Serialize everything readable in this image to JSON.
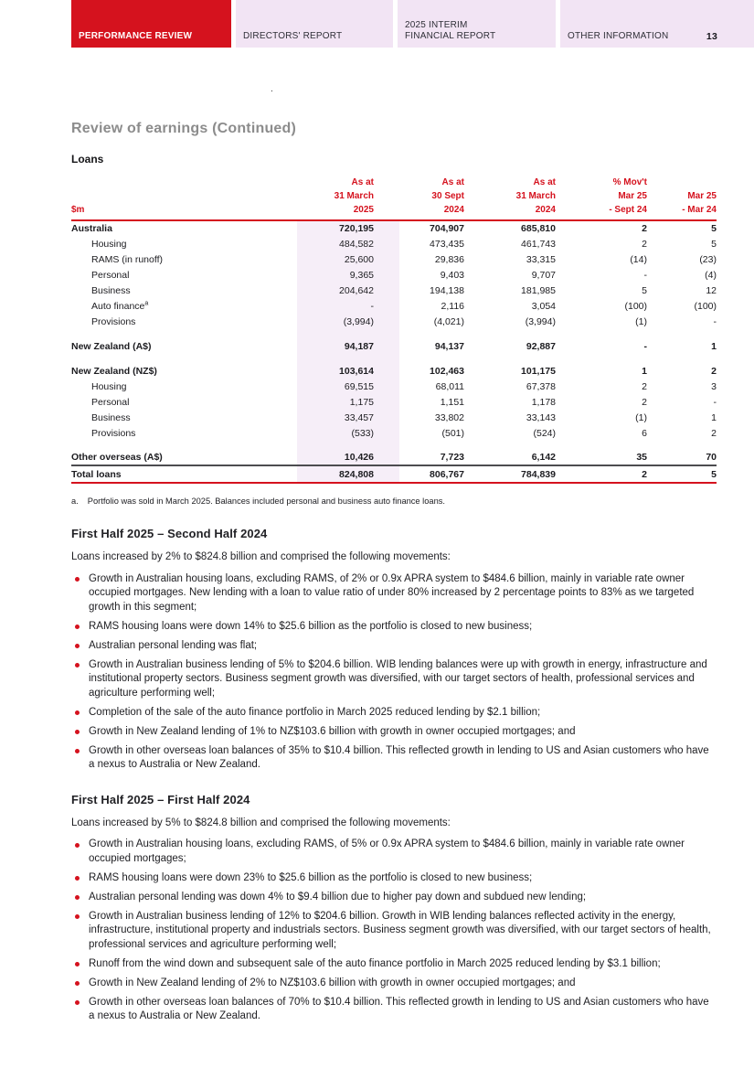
{
  "colors": {
    "accent_red": "#D5121E",
    "tab_pink": "#F2E4F4",
    "column_highlight": "#F6EEF8",
    "title_gray": "#8C8C8C"
  },
  "header": {
    "tabs": [
      {
        "lines": [
          "PERFORMANCE REVIEW"
        ],
        "active": true
      },
      {
        "lines": [
          "DIRECTORS' REPORT"
        ],
        "active": false
      },
      {
        "lines": [
          "2025 INTERIM",
          "FINANCIAL REPORT"
        ],
        "active": false
      },
      {
        "lines": [
          "OTHER INFORMATION"
        ],
        "active": false
      }
    ],
    "page_number": "13"
  },
  "stray_mark": ".",
  "page_title": "Review of earnings (Continued)",
  "loans_label": "Loans",
  "table": {
    "unit": "$m",
    "col_headers": [
      {
        "l1": "As at",
        "l2": "31 March",
        "l3": "2025"
      },
      {
        "l1": "As at",
        "l2": "30 Sept",
        "l3": "2024"
      },
      {
        "l1": "As at",
        "l2": "31 March",
        "l3": "2024"
      },
      {
        "l1": "% Mov't",
        "l2": "Mar 25",
        "l3": "- Sept 24"
      },
      {
        "l1": "",
        "l2": "Mar 25",
        "l3": "- Mar 24"
      }
    ],
    "rows": [
      {
        "label": "Australia",
        "bold": true,
        "values": [
          "720,195",
          "704,907",
          "685,810",
          "2",
          "5"
        ]
      },
      {
        "label": "Housing",
        "indent": true,
        "values": [
          "484,582",
          "473,435",
          "461,743",
          "2",
          "5"
        ]
      },
      {
        "label": "RAMS (in runoff)",
        "indent": true,
        "values": [
          "25,600",
          "29,836",
          "33,315",
          "(14)",
          "(23)"
        ]
      },
      {
        "label": "Personal",
        "indent": true,
        "values": [
          "9,365",
          "9,403",
          "9,707",
          "-",
          "(4)"
        ]
      },
      {
        "label": "Business",
        "indent": true,
        "values": [
          "204,642",
          "194,138",
          "181,985",
          "5",
          "12"
        ]
      },
      {
        "label": "Auto finance",
        "sup": "a",
        "indent": true,
        "values": [
          "-",
          "2,116",
          "3,054",
          "(100)",
          "(100)"
        ]
      },
      {
        "label": "Provisions",
        "indent": true,
        "values": [
          "(3,994)",
          "(4,021)",
          "(3,994)",
          "(1)",
          "-"
        ]
      },
      {
        "spacer": true
      },
      {
        "label": "New Zealand (A$)",
        "bold": true,
        "values": [
          "94,187",
          "94,137",
          "92,887",
          "-",
          "1"
        ]
      },
      {
        "spacer": true
      },
      {
        "label": "New Zealand (NZ$)",
        "bold": true,
        "values": [
          "103,614",
          "102,463",
          "101,175",
          "1",
          "2"
        ]
      },
      {
        "label": "Housing",
        "indent": true,
        "values": [
          "69,515",
          "68,011",
          "67,378",
          "2",
          "3"
        ]
      },
      {
        "label": "Personal",
        "indent": true,
        "values": [
          "1,175",
          "1,151",
          "1,178",
          "2",
          "-"
        ]
      },
      {
        "label": "Business",
        "indent": true,
        "values": [
          "33,457",
          "33,802",
          "33,143",
          "(1)",
          "1"
        ]
      },
      {
        "label": "Provisions",
        "indent": true,
        "values": [
          "(533)",
          "(501)",
          "(524)",
          "6",
          "2"
        ]
      },
      {
        "spacer": true
      },
      {
        "label": "Other overseas (A$)",
        "bold": true,
        "values": [
          "10,426",
          "7,723",
          "6,142",
          "35",
          "70"
        ]
      },
      {
        "label": "Total loans",
        "bold": true,
        "total": true,
        "values": [
          "824,808",
          "806,767",
          "784,839",
          "2",
          "5"
        ]
      }
    ],
    "footnote_marker": "a.",
    "footnote_text": "Portfolio was sold in March 2025. Balances included personal and business auto finance loans."
  },
  "sections": [
    {
      "heading": "First Half 2025 – Second Half 2024",
      "intro": "Loans increased by 2% to $824.8 billion and comprised the following movements:",
      "bullets": [
        "Growth in Australian housing loans, excluding RAMS, of 2% or 0.9x APRA system to $484.6 billion, mainly in variable rate owner occupied mortgages. New lending with a loan to value ratio of under 80% increased by 2 percentage points to 83% as we targeted growth in this segment;",
        "RAMS housing loans were down 14% to $25.6 billion as the portfolio is closed to new business;",
        "Australian personal lending was flat;",
        "Growth in Australian business lending of 5% to $204.6 billion. WIB lending balances were up with growth in energy, infrastructure and institutional property sectors. Business segment growth was diversified, with our target sectors of health, professional services and agriculture performing well;",
        "Completion of the sale of the auto finance portfolio in March 2025 reduced lending by $2.1 billion;",
        "Growth in New Zealand lending of 1% to NZ$103.6 billion with growth in owner occupied mortgages; and",
        "Growth in other overseas loan balances of 35% to $10.4 billion. This reflected growth in lending to US and Asian customers who have a nexus to Australia or New Zealand."
      ]
    },
    {
      "heading": "First Half 2025 – First Half 2024",
      "intro": "Loans increased by 5% to $824.8 billion and comprised the following movements:",
      "bullets": [
        "Growth in Australian housing loans, excluding RAMS, of 5% or 0.9x APRA system to $484.6 billion, mainly in variable rate owner occupied mortgages;",
        "RAMS housing loans were down 23% to $25.6 billion as the portfolio is closed to new business;",
        "Australian personal lending was down 4% to $9.4 billion due to higher pay down and subdued new lending;",
        "Growth in Australian business lending of 12% to $204.6 billion. Growth in WIB lending balances reflected activity in the energy, infrastructure, institutional property and industrials sectors. Business segment growth was diversified, with our target sectors of health, professional services and agriculture performing well;",
        "Runoff from the wind down and subsequent sale of the auto finance portfolio in March 2025 reduced lending by $3.1 billion;",
        "Growth in New Zealand lending of 2% to NZ$103.6 billion with growth in owner occupied mortgages; and",
        "Growth in other overseas loan balances of 70% to $10.4 billion. This reflected growth in lending to US and Asian customers who have a nexus to Australia or New Zealand."
      ]
    }
  ]
}
